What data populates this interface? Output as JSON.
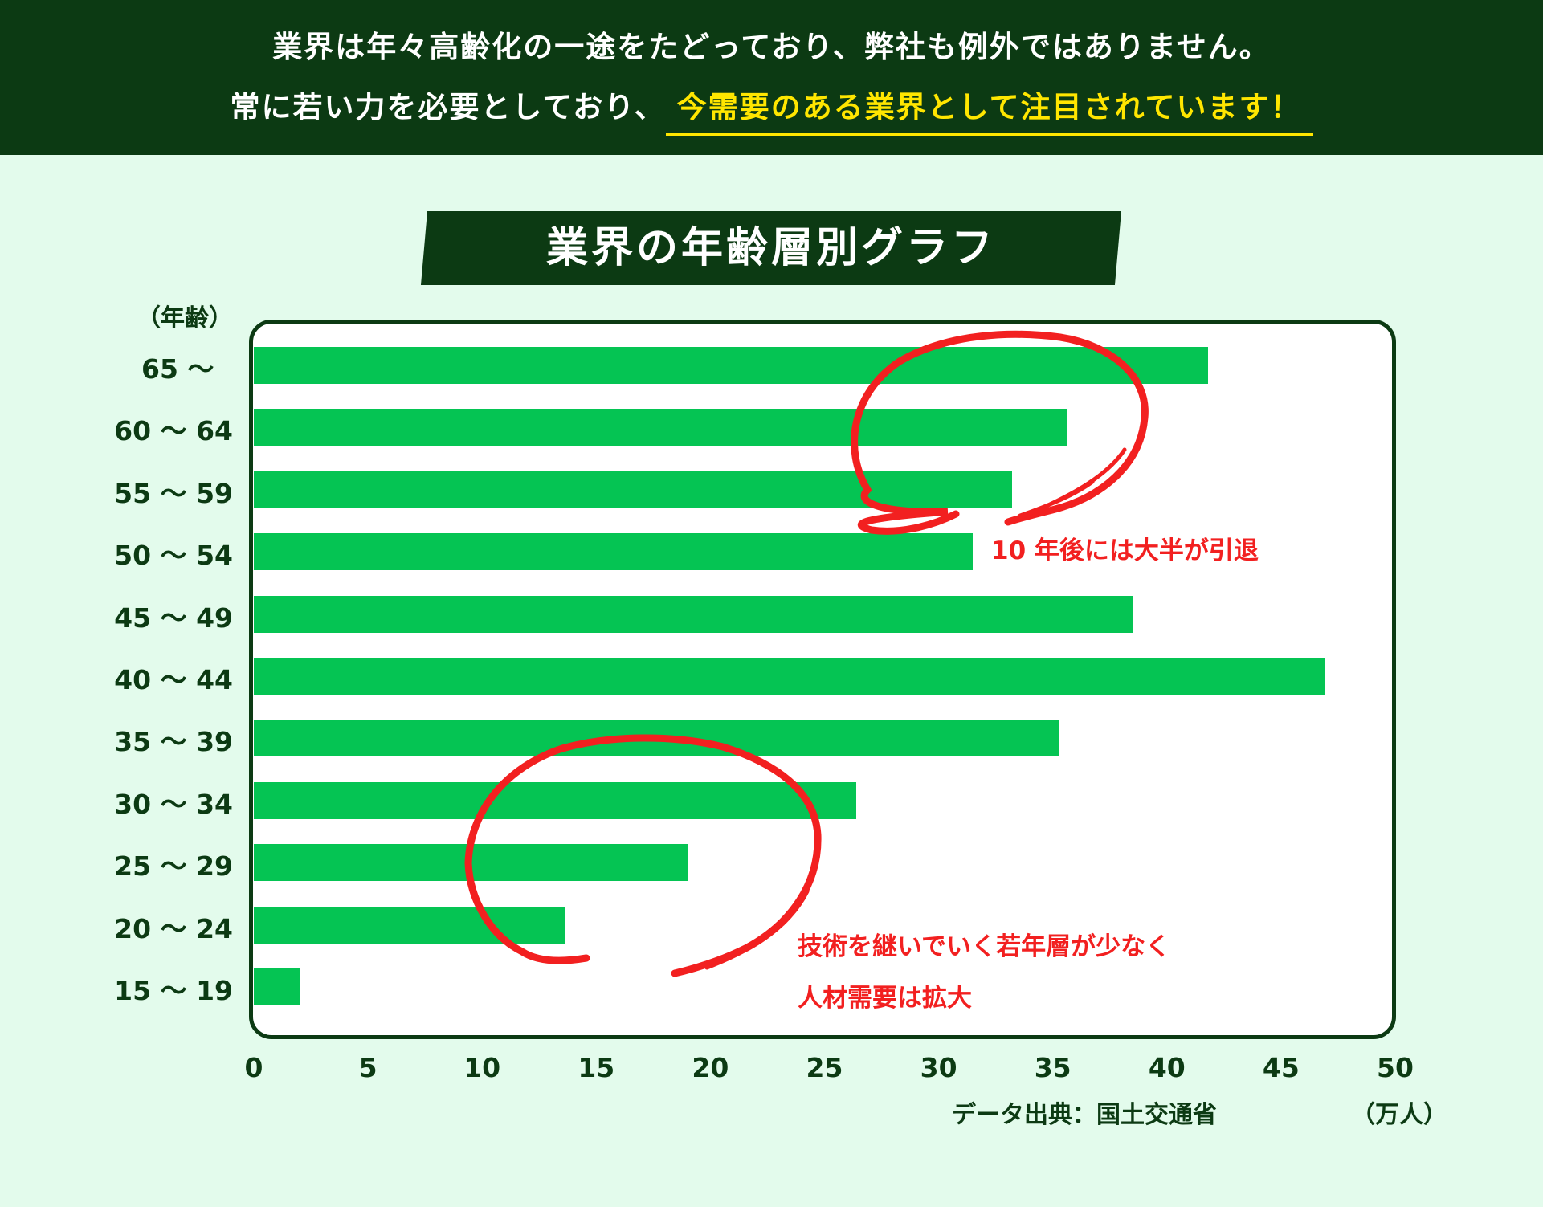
{
  "header": {
    "line1": "業界は年々高齢化の一途をたどっており、弊社も例外ではありません。",
    "line2_plain": "常に若い力を必要としており、",
    "line2_highlight": "今需要のある業界として注目されています！"
  },
  "chart_data": {
    "type": "bar",
    "orientation": "horizontal",
    "title": "業界の年齢層別グラフ",
    "ylabel": "（年齢）",
    "xlabel": "（万人）",
    "source": "データ出典：国土交通省",
    "categories": [
      "65 〜",
      "60 〜 64",
      "55 〜 59",
      "50 〜 54",
      "45 〜 49",
      "40 〜 44",
      "35 〜 39",
      "30 〜 34",
      "25 〜 29",
      "20 〜 24",
      "15 〜 19"
    ],
    "values": [
      41.8,
      35.6,
      33.2,
      31.5,
      38.5,
      46.9,
      35.3,
      26.4,
      19.0,
      13.6,
      2.0
    ],
    "xlim": [
      0,
      50
    ],
    "xticks": [
      "0",
      "5",
      "10",
      "15",
      "20",
      "25",
      "30",
      "35",
      "40",
      "45",
      "50"
    ],
    "grid": false,
    "colors": {
      "bar": "#05c453",
      "frame": "#0c3a13",
      "annotation": "#f22020"
    },
    "annotations": [
      {
        "text": "10 年後には大半が引退"
      },
      {
        "line1": "技術を継いでいく若年層が少なく",
        "line2": "人材需要は拡大"
      }
    ]
  }
}
